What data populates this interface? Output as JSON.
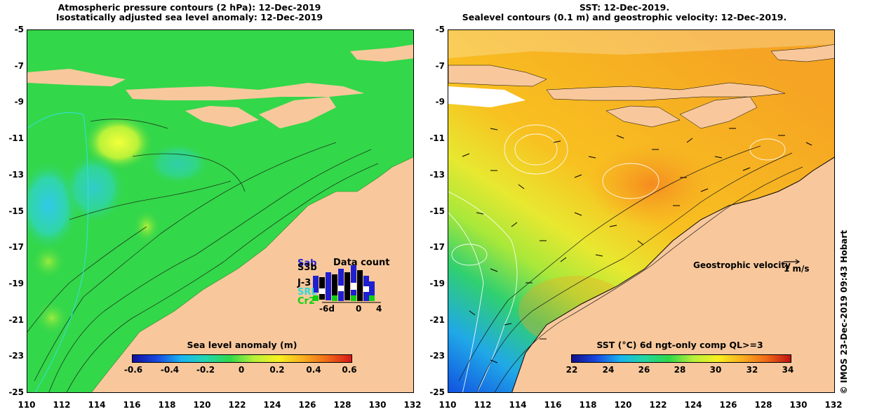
{
  "left_map": {
    "title_line1": "Atmospheric pressure contours (2 hPa): 12-Dec-2019",
    "title_line2": "Isostatically adjusted sea level anomaly: 12-Dec-2019",
    "colorbar": {
      "title": "Sea level anomaly (m)",
      "ticks": [
        "-0.6",
        "-0.4",
        "-0.2",
        "0",
        "0.2",
        "0.4",
        "0.6"
      ]
    },
    "data_count": {
      "title": "Data count",
      "satellites": [
        {
          "name": "Sab",
          "color": "#1f1fd0"
        },
        {
          "name": "S3b",
          "color": "#000000"
        },
        {
          "name": "J-3",
          "color": "#000000"
        },
        {
          "name": "SRL",
          "color": "#2fd9d9"
        },
        {
          "name": "Cr2",
          "color": "#11d011"
        }
      ],
      "x_ticks": [
        "-6d",
        "0",
        "4"
      ]
    }
  },
  "right_map": {
    "title_line1": "SST: 12-Dec-2019.",
    "title_line2": "Sealevel contours (0.1 m) and geostrophic velocity: 12-Dec-2019.",
    "colorbar": {
      "title": "SST (°C) 6d ngt-only comp QL>=3",
      "ticks": [
        "22",
        "24",
        "26",
        "28",
        "30",
        "32",
        "34"
      ]
    },
    "velocity_legend": {
      "label": "Geostrophic velocity",
      "scale": "1 m/s"
    }
  },
  "axes": {
    "lon_ticks": [
      "110",
      "112",
      "114",
      "116",
      "118",
      "120",
      "122",
      "124",
      "126",
      "128",
      "130",
      "132"
    ],
    "lat_ticks": [
      "-5",
      "-7",
      "-9",
      "-11",
      "-13",
      "-15",
      "-17",
      "-19",
      "-21",
      "-23",
      "-25"
    ]
  },
  "credit": "© IMOS 23-Dec-2019 09:43 Hobart",
  "colors": {
    "land": "#f8c89c",
    "ocean_green": "#33d74a",
    "sst_orange": "#f5a423"
  }
}
